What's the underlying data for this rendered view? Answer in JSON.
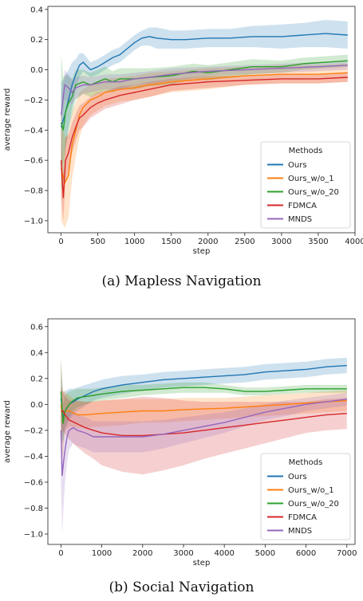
{
  "chart_data": [
    {
      "type": "line",
      "caption": "(a) Mapless Navigation",
      "xlabel": "step",
      "ylabel": "average reward",
      "xlim": [
        -180,
        4000
      ],
      "ylim": [
        -1.08,
        0.42
      ],
      "xticks": [
        "0",
        "500",
        "1000",
        "1500",
        "2000",
        "2500",
        "3000",
        "3500",
        "4000"
      ],
      "xtick_values": [
        0,
        500,
        1000,
        1500,
        2000,
        2500,
        3000,
        3500,
        4000
      ],
      "yticks": [
        "−1.0",
        "−0.8",
        "−0.6",
        "−0.4",
        "−0.2",
        "0.0",
        "0.2",
        "0.4"
      ],
      "ytick_values": [
        -1.0,
        -0.8,
        -0.6,
        -0.4,
        -0.2,
        0.0,
        0.2,
        0.4
      ],
      "grid": false,
      "legend": {
        "title": "Methods",
        "placement": "lower-right"
      },
      "series": [
        {
          "name": "Ours",
          "color": "#1f77b4",
          "x": [
            0,
            50,
            100,
            150,
            200,
            250,
            300,
            400,
            500,
            600,
            700,
            800,
            900,
            1000,
            1100,
            1200,
            1300,
            1500,
            1700,
            2000,
            2300,
            2600,
            3000,
            3300,
            3600,
            3900
          ],
          "y": [
            -0.38,
            -0.3,
            -0.2,
            -0.1,
            -0.03,
            0.03,
            0.05,
            0.0,
            0.02,
            0.05,
            0.08,
            0.1,
            0.14,
            0.18,
            0.21,
            0.22,
            0.21,
            0.2,
            0.2,
            0.21,
            0.21,
            0.22,
            0.22,
            0.23,
            0.24,
            0.23
          ],
          "spread": [
            0.3,
            0.25,
            0.2,
            0.15,
            0.1,
            0.08,
            0.06,
            0.05,
            0.05,
            0.05,
            0.05,
            0.05,
            0.05,
            0.05,
            0.05,
            0.06,
            0.07,
            0.06,
            0.06,
            0.06,
            0.06,
            0.07,
            0.08,
            0.08,
            0.09,
            0.09
          ]
        },
        {
          "name": "Ours_w/o_1",
          "color": "#ff7f0e",
          "x": [
            0,
            50,
            100,
            150,
            200,
            250,
            300,
            400,
            500,
            600,
            800,
            1000,
            1200,
            1500,
            2000,
            2500,
            3000,
            3500,
            3900
          ],
          "y": [
            -0.65,
            -0.75,
            -0.7,
            -0.5,
            -0.4,
            -0.3,
            -0.25,
            -0.2,
            -0.18,
            -0.15,
            -0.13,
            -0.12,
            -0.1,
            -0.08,
            -0.06,
            -0.04,
            -0.03,
            -0.03,
            -0.02
          ],
          "spread": [
            0.35,
            0.3,
            0.28,
            0.22,
            0.18,
            0.15,
            0.12,
            0.1,
            0.09,
            0.09,
            0.08,
            0.08,
            0.08,
            0.07,
            0.07,
            0.06,
            0.06,
            0.06,
            0.06
          ]
        },
        {
          "name": "Ours_w/o_20",
          "color": "#2ca02c",
          "x": [
            0,
            30,
            60,
            100,
            150,
            200,
            300,
            400,
            500,
            600,
            700,
            800,
            1000,
            1200,
            1500,
            1800,
            2000,
            2300,
            2600,
            3000,
            3300,
            3600,
            3900
          ],
          "y": [
            -0.35,
            -0.4,
            -0.28,
            -0.22,
            -0.18,
            -0.1,
            -0.08,
            -0.1,
            -0.08,
            -0.06,
            -0.08,
            -0.06,
            -0.06,
            -0.05,
            -0.04,
            -0.01,
            -0.02,
            0.0,
            0.02,
            0.02,
            0.04,
            0.05,
            0.06
          ],
          "spread": [
            0.45,
            0.35,
            0.25,
            0.18,
            0.12,
            0.1,
            0.08,
            0.08,
            0.08,
            0.08,
            0.07,
            0.07,
            0.07,
            0.06,
            0.06,
            0.05,
            0.05,
            0.05,
            0.05,
            0.04,
            0.04,
            0.04,
            0.04
          ]
        },
        {
          "name": "FDMCA",
          "color": "#d62728",
          "x": [
            0,
            30,
            60,
            100,
            150,
            200,
            250,
            300,
            400,
            500,
            600,
            800,
            1000,
            1200,
            1500,
            2000,
            2500,
            3000,
            3500,
            3900
          ],
          "y": [
            -0.6,
            -0.85,
            -0.6,
            -0.55,
            -0.45,
            -0.38,
            -0.32,
            -0.3,
            -0.25,
            -0.22,
            -0.2,
            -0.17,
            -0.15,
            -0.13,
            -0.1,
            -0.08,
            -0.07,
            -0.06,
            -0.06,
            -0.05
          ],
          "spread": [
            0.25,
            0.15,
            0.15,
            0.12,
            0.1,
            0.09,
            0.08,
            0.08,
            0.07,
            0.07,
            0.06,
            0.06,
            0.05,
            0.05,
            0.04,
            0.04,
            0.03,
            0.03,
            0.03,
            0.03
          ]
        },
        {
          "name": "MNDS",
          "color": "#9467bd",
          "x": [
            0,
            50,
            100,
            150,
            200,
            300,
            400,
            500,
            600,
            800,
            1000,
            1200,
            1500,
            2000,
            2500,
            3000,
            3500,
            3900
          ],
          "y": [
            -0.3,
            -0.1,
            -0.12,
            -0.15,
            -0.12,
            -0.1,
            -0.1,
            -0.09,
            -0.08,
            -0.08,
            -0.06,
            -0.05,
            -0.03,
            -0.01,
            0.0,
            0.01,
            0.02,
            0.03
          ],
          "spread": [
            0.12,
            0.1,
            0.09,
            0.08,
            0.07,
            0.06,
            0.05,
            0.05,
            0.05,
            0.05,
            0.04,
            0.04,
            0.04,
            0.03,
            0.03,
            0.03,
            0.03,
            0.03
          ]
        }
      ]
    },
    {
      "type": "line",
      "caption": "(b) Social Navigation",
      "xlabel": "step",
      "ylabel": "average reward",
      "xlim": [
        -320,
        7200
      ],
      "ylim": [
        -1.08,
        0.66
      ],
      "xticks": [
        "0",
        "1000",
        "2000",
        "3000",
        "4000",
        "5000",
        "6000",
        "7000"
      ],
      "xtick_values": [
        0,
        1000,
        2000,
        3000,
        4000,
        5000,
        6000,
        7000
      ],
      "yticks": [
        "−1.0",
        "−0.8",
        "−0.6",
        "−0.4",
        "−0.2",
        "0.0",
        "0.2",
        "0.4",
        "0.6"
      ],
      "ytick_values": [
        -1.0,
        -0.8,
        -0.6,
        -0.4,
        -0.2,
        0.0,
        0.2,
        0.4,
        0.6
      ],
      "grid": false,
      "legend": {
        "title": "Methods",
        "placement": "lower-right"
      },
      "series": [
        {
          "name": "Ours",
          "color": "#1f77b4",
          "x": [
            0,
            50,
            100,
            200,
            300,
            400,
            600,
            800,
            1000,
            1500,
            2000,
            2500,
            3000,
            3500,
            4000,
            4500,
            5000,
            5500,
            6000,
            6500,
            7000
          ],
          "y": [
            0.05,
            -0.1,
            -0.05,
            0.0,
            0.02,
            0.04,
            0.07,
            0.1,
            0.12,
            0.15,
            0.17,
            0.19,
            0.2,
            0.21,
            0.22,
            0.23,
            0.25,
            0.26,
            0.27,
            0.29,
            0.3
          ],
          "spread": [
            0.3,
            0.2,
            0.15,
            0.12,
            0.1,
            0.09,
            0.08,
            0.07,
            0.07,
            0.07,
            0.06,
            0.06,
            0.06,
            0.06,
            0.06,
            0.06,
            0.06,
            0.06,
            0.06,
            0.06,
            0.06
          ]
        },
        {
          "name": "Ours_w/o_1",
          "color": "#ff7f0e",
          "x": [
            0,
            50,
            100,
            200,
            400,
            600,
            1000,
            1500,
            2000,
            2500,
            3000,
            4000,
            5000,
            6000,
            7000
          ],
          "y": [
            0.0,
            -0.15,
            -0.05,
            -0.05,
            -0.08,
            -0.08,
            -0.07,
            -0.06,
            -0.05,
            -0.05,
            -0.04,
            -0.03,
            -0.01,
            0.01,
            0.03
          ],
          "spread": [
            0.35,
            0.25,
            0.15,
            0.12,
            0.1,
            0.1,
            0.1,
            0.1,
            0.09,
            0.09,
            0.09,
            0.08,
            0.08,
            0.08,
            0.08
          ]
        },
        {
          "name": "Ours_w/o_20",
          "color": "#2ca02c",
          "x": [
            0,
            50,
            100,
            200,
            300,
            400,
            600,
            800,
            1000,
            1500,
            2000,
            2500,
            3000,
            3500,
            4000,
            4500,
            5000,
            5500,
            6000,
            7000
          ],
          "y": [
            0.1,
            -0.15,
            -0.05,
            0.0,
            0.03,
            0.05,
            0.06,
            0.07,
            0.08,
            0.1,
            0.11,
            0.12,
            0.13,
            0.13,
            0.12,
            0.1,
            0.1,
            0.11,
            0.12,
            0.12
          ],
          "spread": [
            0.25,
            0.15,
            0.12,
            0.1,
            0.08,
            0.07,
            0.06,
            0.05,
            0.05,
            0.05,
            0.04,
            0.04,
            0.04,
            0.04,
            0.03,
            0.03,
            0.03,
            0.03,
            0.03,
            0.03
          ]
        },
        {
          "name": "FDMCA",
          "color": "#d62728",
          "x": [
            0,
            50,
            100,
            200,
            400,
            600,
            800,
            1000,
            1500,
            2000,
            2500,
            3000,
            3500,
            4000,
            4500,
            5000,
            5500,
            6000,
            6500,
            7000
          ],
          "y": [
            -0.05,
            -0.05,
            -0.08,
            -0.12,
            -0.15,
            -0.18,
            -0.2,
            -0.22,
            -0.24,
            -0.24,
            -0.23,
            -0.22,
            -0.2,
            -0.18,
            -0.16,
            -0.14,
            -0.12,
            -0.1,
            -0.08,
            -0.07
          ],
          "spread": [
            0.2,
            0.15,
            0.15,
            0.15,
            0.18,
            0.2,
            0.22,
            0.25,
            0.28,
            0.3,
            0.28,
            0.25,
            0.22,
            0.2,
            0.18,
            0.16,
            0.14,
            0.12,
            0.12,
            0.12
          ]
        },
        {
          "name": "MNDS",
          "color": "#9467bd",
          "x": [
            0,
            30,
            60,
            100,
            150,
            200,
            300,
            400,
            600,
            800,
            1000,
            1500,
            2000,
            2500,
            3000,
            3500,
            4000,
            4500,
            5000,
            5500,
            6000,
            6500,
            7000
          ],
          "y": [
            -0.2,
            -0.55,
            -0.45,
            -0.35,
            -0.25,
            -0.2,
            -0.18,
            -0.2,
            -0.22,
            -0.25,
            -0.25,
            -0.25,
            -0.25,
            -0.23,
            -0.2,
            -0.17,
            -0.14,
            -0.1,
            -0.06,
            -0.03,
            0.0,
            0.02,
            0.04
          ],
          "spread": [
            0.4,
            0.45,
            0.35,
            0.25,
            0.2,
            0.15,
            0.12,
            0.12,
            0.12,
            0.12,
            0.12,
            0.12,
            0.12,
            0.11,
            0.1,
            0.09,
            0.08,
            0.07,
            0.06,
            0.06,
            0.05,
            0.05,
            0.05
          ]
        }
      ]
    }
  ]
}
